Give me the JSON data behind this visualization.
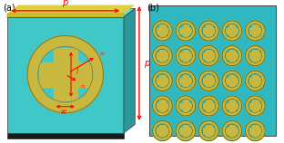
{
  "fig_width": 3.12,
  "fig_height": 1.58,
  "dpi": 100,
  "bg_color": "#ffffff",
  "panel_a": {
    "teal_front": "#40C8C8",
    "teal_top": "#60DEDE",
    "teal_right": "#2A9898",
    "teal_bottom_strip": "#1A7878",
    "gold_color": "#C8B840",
    "gold_dark": "#907820",
    "gold_strip": "#D0C040",
    "red_color": "#FF0000"
  },
  "panel_b": {
    "teal": "#30B8C0",
    "teal_bright": "#50D8E0",
    "gold": "#C8B840",
    "gold_dark": "#907820",
    "rows": 5,
    "cols": 5
  }
}
